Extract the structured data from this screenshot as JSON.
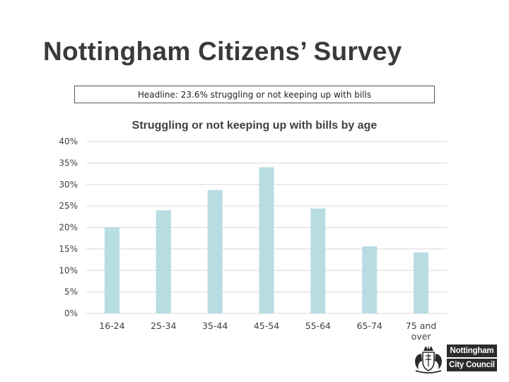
{
  "page": {
    "title": "Nottingham Citizens’ Survey",
    "headline": "Headline: 23.6% struggling or not keeping up with bills"
  },
  "logo": {
    "line1": "Nottingham",
    "line2": "City Council",
    "crest_icon": "coat-of-arms-icon"
  },
  "chart_data": {
    "type": "bar",
    "title": "Struggling or not keeping up with bills by age",
    "xlabel": "",
    "ylabel": "",
    "categories": [
      "16-24",
      "25-34",
      "35-44",
      "45-54",
      "55-64",
      "65-74",
      "75 and over"
    ],
    "values": [
      20,
      24,
      28.7,
      34,
      24.4,
      15.6,
      14.2
    ],
    "value_format": "percent",
    "ylim": [
      0,
      40
    ],
    "yticks": [
      0,
      5,
      10,
      15,
      20,
      25,
      30,
      35,
      40
    ],
    "ytick_labels": [
      "0%",
      "5%",
      "10%",
      "15%",
      "20%",
      "25%",
      "30%",
      "35%",
      "40%"
    ],
    "grid": true,
    "legend": "none",
    "colors": {
      "bar": "#b7dde3",
      "grid": "#d9d9d9",
      "text": "#404040"
    }
  }
}
